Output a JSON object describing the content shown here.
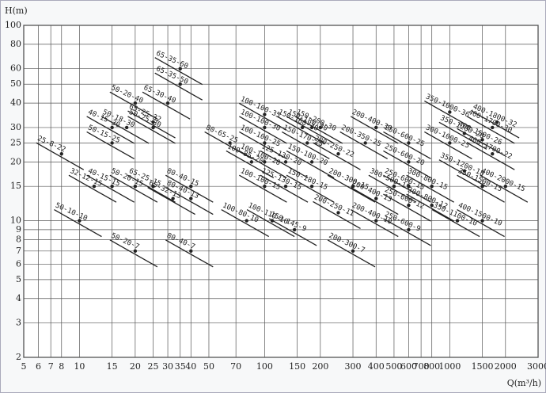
{
  "chart_data": {
    "type": "pump-chart",
    "y_label": "H(m)",
    "x_label": "Q(m³/h)",
    "xlog": true,
    "ylog": true,
    "grid": true,
    "xlim": [
      5,
      3000
    ],
    "ylim": [
      2,
      100
    ],
    "xticks": [
      5,
      6,
      7,
      8,
      10,
      15,
      20,
      25,
      30,
      35,
      40,
      50,
      70,
      100,
      150,
      200,
      300,
      400,
      500,
      600,
      700,
      800,
      1000,
      1500,
      2000,
      3000
    ],
    "yticks": [
      2,
      3,
      4,
      5,
      6,
      7,
      8,
      9,
      10,
      15,
      20,
      25,
      30,
      40,
      50,
      60,
      80,
      100
    ],
    "color": "#222222",
    "pumps": [
      {
        "label": "25-8-22",
        "q": 8,
        "h": 22
      },
      {
        "label": "32-12-15",
        "q": 12,
        "h": 15
      },
      {
        "label": "40-15-15",
        "q": 15,
        "h": 15
      },
      {
        "label": "50-10-10",
        "q": 10,
        "h": 10
      },
      {
        "label": "50-20-7",
        "q": 20,
        "h": 7
      },
      {
        "label": "50-20-15",
        "q": 20,
        "h": 15
      },
      {
        "label": "65-25-15",
        "q": 25,
        "h": 15
      },
      {
        "label": "50-15-25",
        "q": 15,
        "h": 25
      },
      {
        "label": "40-15-30",
        "q": 15,
        "h": 30
      },
      {
        "label": "50-18-30",
        "q": 18,
        "h": 30
      },
      {
        "label": "50-20-40",
        "q": 20,
        "h": 40
      },
      {
        "label": "50-25-30",
        "q": 25,
        "h": 30
      },
      {
        "label": "65-25-32",
        "q": 25,
        "h": 32
      },
      {
        "label": "65-30-40",
        "q": 30,
        "h": 40
      },
      {
        "label": "65-35-50",
        "q": 35,
        "h": 50
      },
      {
        "label": "65-35-60",
        "q": 35,
        "h": 60
      },
      {
        "label": "80-40-15",
        "q": 40,
        "h": 15
      },
      {
        "label": "65-32-13",
        "q": 32,
        "h": 13
      },
      {
        "label": "80-40-13",
        "q": 40,
        "h": 13
      },
      {
        "label": "80-40-7",
        "q": 40,
        "h": 7
      },
      {
        "label": "80-65-25",
        "q": 65,
        "h": 25
      },
      {
        "label": "100-100-35",
        "q": 100,
        "h": 35
      },
      {
        "label": "100-100-30",
        "q": 100,
        "h": 30
      },
      {
        "label": "100-100-25",
        "q": 100,
        "h": 25
      },
      {
        "label": "100-85-20",
        "q": 85,
        "h": 20
      },
      {
        "label": "100-100-20",
        "q": 100,
        "h": 20
      },
      {
        "label": "100-100-15",
        "q": 100,
        "h": 15
      },
      {
        "label": "100-80-10",
        "q": 80,
        "h": 10
      },
      {
        "label": "100-110-10",
        "q": 110,
        "h": 10
      },
      {
        "label": "125-130-20",
        "q": 130,
        "h": 20
      },
      {
        "label": "125-130-15",
        "q": 130,
        "h": 15
      },
      {
        "label": "150-145-9",
        "q": 145,
        "h": 9
      },
      {
        "label": "150-160-30",
        "q": 160,
        "h": 30
      },
      {
        "label": "150-180-30",
        "q": 180,
        "h": 30
      },
      {
        "label": "150-170-25",
        "q": 170,
        "h": 25
      },
      {
        "label": "150-180-20",
        "q": 180,
        "h": 20
      },
      {
        "label": "150-180-15",
        "q": 180,
        "h": 15
      },
      {
        "label": "150-200-30",
        "q": 200,
        "h": 30
      },
      {
        "label": "200-250-22",
        "q": 250,
        "h": 22
      },
      {
        "label": "200-300-15",
        "q": 300,
        "h": 15
      },
      {
        "label": "200-250-11",
        "q": 250,
        "h": 11
      },
      {
        "label": "200-300-7",
        "q": 300,
        "h": 7
      },
      {
        "label": "200-400-30",
        "q": 400,
        "h": 30
      },
      {
        "label": "200-350-25",
        "q": 350,
        "h": 25
      },
      {
        "label": "200-400-13",
        "q": 400,
        "h": 13
      },
      {
        "label": "200-400-10",
        "q": 400,
        "h": 10
      },
      {
        "label": "250-600-25",
        "q": 600,
        "h": 25
      },
      {
        "label": "250-600-20",
        "q": 600,
        "h": 20
      },
      {
        "label": "300-500-15",
        "q": 500,
        "h": 15
      },
      {
        "label": "250-600-15",
        "q": 600,
        "h": 15
      },
      {
        "label": "250-600-12",
        "q": 600,
        "h": 12
      },
      {
        "label": "250-600-9",
        "q": 600,
        "h": 9
      },
      {
        "label": "300-800-15",
        "q": 800,
        "h": 15
      },
      {
        "label": "300-800-12",
        "q": 800,
        "h": 12
      },
      {
        "label": "350-1000-36",
        "q": 1000,
        "h": 36
      },
      {
        "label": "300-1000-25",
        "q": 1000,
        "h": 25
      },
      {
        "label": "350-1200-28",
        "q": 1200,
        "h": 28
      },
      {
        "label": "350-1200-18",
        "q": 1200,
        "h": 18
      },
      {
        "label": "350-1100-10",
        "q": 1100,
        "h": 10
      },
      {
        "label": "350-1500-15",
        "q": 1500,
        "h": 15
      },
      {
        "label": "400-1500-26",
        "q": 1500,
        "h": 26
      },
      {
        "label": "400-1700-30",
        "q": 1700,
        "h": 30
      },
      {
        "label": "400-1800-32",
        "q": 1800,
        "h": 32
      },
      {
        "label": "400-1700-22",
        "q": 1700,
        "h": 22
      },
      {
        "label": "400-2000-15",
        "q": 2000,
        "h": 15
      },
      {
        "label": "400-1500-10",
        "q": 1500,
        "h": 10
      }
    ]
  }
}
